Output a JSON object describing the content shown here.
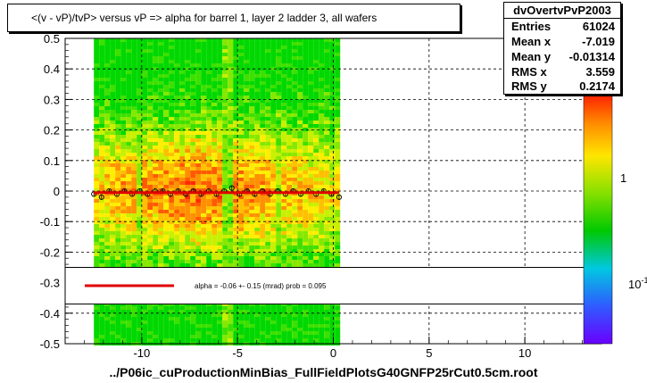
{
  "title": "<(v - vP)/tvP> versus   vP => alpha for barrel 1, layer 2 ladder 3, all wafers",
  "x_axis_title": "../P06ic_cuProductionMinBias_FullFieldPlotsG40GNFP25rCut0.5cm.root",
  "stats": {
    "name": "dvOvertvPvP2003",
    "rows": [
      {
        "label": "Entries",
        "value": "61024"
      },
      {
        "label": "Mean x",
        "value": "-7.019"
      },
      {
        "label": "Mean y",
        "value": "-0.01314"
      },
      {
        "label": "RMS x",
        "value": "3.559"
      },
      {
        "label": "RMS y",
        "value": "0.2174"
      }
    ]
  },
  "legend": {
    "fit_text": "alpha =   -0.06 +-  0.15 (mrad) prob = 0.095",
    "line_color": "#e00000"
  },
  "colorbar": {
    "labels": [
      "1",
      "10"
    ],
    "label_sup": "-1"
  },
  "chart_data": {
    "type": "heatmap",
    "xlim": [
      -14,
      14
    ],
    "ylim": [
      -0.5,
      0.5
    ],
    "xticks": [
      -10,
      -5,
      0,
      5,
      10
    ],
    "xtick_labels": [
      "-10",
      "-5",
      "0",
      "5",
      "10"
    ],
    "yticks": [
      0.5,
      0.4,
      0.3,
      0.2,
      0.1,
      0,
      -0.1,
      -0.2,
      -0.3,
      -0.4,
      -0.5
    ],
    "ytick_labels": [
      "0.5",
      "0.4",
      "0.3",
      "0.2",
      "0.1",
      "0",
      "-0.1",
      "-0.2",
      "-0.3",
      "-0.4",
      "-0.5"
    ],
    "grid": true,
    "data_x_range": [
      -12.5,
      0.3
    ],
    "profile": {
      "x": [
        -12.5,
        -12.1,
        -11.7,
        -11.3,
        -10.9,
        -10.5,
        -10.1,
        -9.7,
        -9.3,
        -8.9,
        -8.5,
        -8.1,
        -7.7,
        -7.3,
        -6.9,
        -6.5,
        -6.1,
        -5.7,
        -5.3,
        -4.9,
        -4.5,
        -4.1,
        -3.7,
        -3.3,
        -2.9,
        -2.5,
        -2.1,
        -1.7,
        -1.3,
        -0.9,
        -0.5,
        -0.1,
        0.3
      ],
      "y": [
        -0.01,
        -0.02,
        0.0,
        -0.01,
        0.0,
        -0.01,
        0.0,
        -0.01,
        0.0,
        0.0,
        -0.01,
        0.0,
        -0.01,
        0.0,
        -0.01,
        0.0,
        -0.01,
        0.0,
        0.01,
        -0.01,
        0.0,
        -0.01,
        0.0,
        -0.01,
        0.0,
        -0.01,
        0.0,
        -0.01,
        0.0,
        -0.01,
        0.0,
        -0.01,
        -0.02
      ]
    },
    "fit_line": {
      "x": [
        -12.5,
        0.3
      ],
      "y": [
        -0.005,
        -0.005
      ]
    }
  }
}
